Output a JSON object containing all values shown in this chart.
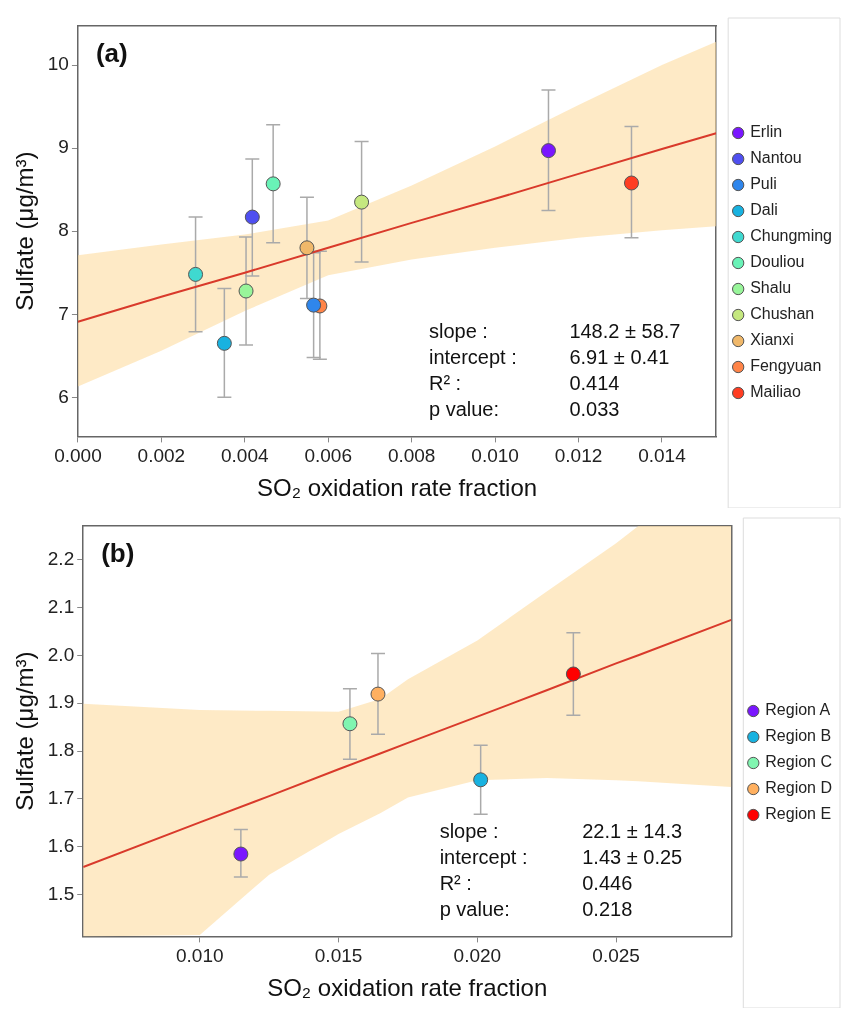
{
  "chart_data": [
    {
      "type": "scatter",
      "title": "(a)",
      "xlabel": "SO₂ oxidation rate fraction",
      "ylabel": "Sulfate (μg/m³)",
      "xlim": [
        0,
        0.0153
      ],
      "xticks": [
        {
          "value": 0,
          "label": "0.000"
        },
        0.002,
        0.004,
        0.006,
        0.008,
        {
          "value": 0.01,
          "label": "0.010"
        },
        0.012,
        0.014
      ],
      "ylim": [
        5.53,
        10.47
      ],
      "yticks": [
        6,
        7,
        8,
        9,
        10
      ],
      "grid": false,
      "legend": "right",
      "marker": "circle",
      "annotations": [
        "slope :",
        "148.2 ± 58.7",
        "intercept :",
        "6.91 ± 0.41",
        "R² :",
        "0.414",
        "p value:",
        "0.033"
      ],
      "series": [
        {
          "name": "Erlin",
          "color": "#7a16ff",
          "x": [
            0.01128
          ],
          "values": [
            8.97
          ],
          "errors": [
            [
              8.25,
              9.7
            ]
          ]
        },
        {
          "name": "Nantou",
          "color": "#4f4ff0",
          "x": [
            0.00418
          ],
          "values": [
            8.17
          ],
          "errors": [
            [
              7.46,
              8.87
            ]
          ]
        },
        {
          "name": "Puli",
          "color": "#2f86ec",
          "x": [
            0.00565
          ],
          "values": [
            7.11
          ],
          "errors": [
            [
              6.48,
              7.74
            ]
          ]
        },
        {
          "name": "Dali",
          "color": "#18b2e0",
          "x": [
            0.00351
          ],
          "values": [
            6.65
          ],
          "errors": [
            [
              6.0,
              7.31
            ]
          ]
        },
        {
          "name": "Chungming",
          "color": "#3fd9d0",
          "x": [
            0.00282
          ],
          "values": [
            7.48
          ],
          "errors": [
            [
              6.79,
              8.17
            ]
          ]
        },
        {
          "name": "Douliou",
          "color": "#69f2b7",
          "x": [
            0.00468
          ],
          "values": [
            8.57
          ],
          "errors": [
            [
              7.86,
              9.28
            ]
          ]
        },
        {
          "name": "Shalu",
          "color": "#98f59a",
          "x": [
            0.00403
          ],
          "values": [
            7.28
          ],
          "errors": [
            [
              6.63,
              7.93
            ]
          ]
        },
        {
          "name": "Chushan",
          "color": "#c5e87f",
          "x": [
            0.0068
          ],
          "values": [
            8.35
          ],
          "errors": [
            [
              7.63,
              9.08
            ]
          ]
        },
        {
          "name": "Xianxi",
          "color": "#f0b86a",
          "x": [
            0.00549
          ],
          "values": [
            7.8
          ],
          "errors": [
            [
              7.19,
              8.41
            ]
          ]
        },
        {
          "name": "Fengyuan",
          "color": "#ff8448",
          "x": [
            0.0058
          ],
          "values": [
            7.1
          ],
          "errors": [
            [
              6.46,
              7.76
            ]
          ]
        },
        {
          "name": "Mailiao",
          "color": "#ff3d22",
          "x": [
            0.01327
          ],
          "values": [
            8.58
          ],
          "errors": [
            [
              7.92,
              9.26
            ]
          ]
        },
        {
          "type": "line",
          "marker": "none",
          "color": "#d93a2b",
          "x": [
            0,
            0.002,
            0.004,
            0.006,
            0.008,
            0.01,
            0.012,
            0.014,
            0.0153
          ],
          "values": [
            6.91,
            7.21,
            7.5,
            7.8,
            8.1,
            8.39,
            8.69,
            8.99,
            9.18
          ],
          "lower": [
            6.13,
            6.56,
            7.04,
            7.47,
            7.66,
            7.8,
            7.92,
            8.01,
            8.06
          ],
          "upper": [
            7.71,
            7.84,
            7.96,
            8.13,
            8.55,
            9.02,
            9.52,
            10.0,
            10.28
          ]
        }
      ]
    },
    {
      "type": "scatter",
      "title": "(b)",
      "xlabel": "SO₂ oxidation rate fraction",
      "ylabel": "Sulfate (μg/m³)",
      "xlim": [
        0.0058,
        0.02915
      ],
      "xticks": [
        {
          "value": 0.01,
          "label": "0.010"
        },
        0.015,
        {
          "value": 0.02,
          "label": "0.020"
        },
        0.025
      ],
      "ylim": [
        1.413,
        2.27
      ],
      "yticks": [
        1.5,
        1.6,
        1.7,
        1.8,
        1.9,
        {
          "value": 2.0,
          "label": "2.0"
        },
        2.1,
        2.2
      ],
      "grid": false,
      "legend": "right",
      "marker": "circle",
      "annotations": [
        "slope :",
        "22.1 ± 14.3",
        "intercept :",
        "1.43 ± 0.25",
        "R² :",
        "0.446",
        "p value:",
        "0.218"
      ],
      "series": [
        {
          "name": "Region A",
          "color": "#7a16ff",
          "x": [
            0.01148
          ],
          "values": [
            1.585
          ],
          "errors": [
            [
              1.537,
              1.636
            ]
          ]
        },
        {
          "name": "Region B",
          "color": "#18b2e0",
          "x": [
            0.02012
          ],
          "values": [
            1.74
          ],
          "errors": [
            [
              1.668,
              1.812
            ]
          ]
        },
        {
          "name": "Region C",
          "color": "#80f5b0",
          "x": [
            0.01541
          ],
          "values": [
            1.857
          ],
          "errors": [
            [
              1.783,
              1.93
            ]
          ]
        },
        {
          "name": "Region D",
          "color": "#ffb060",
          "x": [
            0.01642
          ],
          "values": [
            1.919
          ],
          "errors": [
            [
              1.835,
              2.004
            ]
          ]
        },
        {
          "name": "Region E",
          "color": "#ff0000",
          "x": [
            0.02346
          ],
          "values": [
            1.961
          ],
          "errors": [
            [
              1.875,
              2.047
            ]
          ]
        },
        {
          "type": "line",
          "marker": "none",
          "color": "#d93a2b",
          "x": [
            0.0058,
            0.01,
            0.0125,
            0.015,
            0.0165,
            0.0175,
            0.02,
            0.0225,
            0.025,
            0.0258,
            0.02915
          ],
          "values": [
            1.558,
            1.651,
            1.706,
            1.762,
            1.795,
            1.817,
            1.872,
            1.927,
            1.983,
            2.0,
            2.074
          ],
          "lower": [
            1.413,
            1.416,
            1.542,
            1.627,
            1.67,
            1.703,
            1.739,
            1.744,
            1.739,
            1.737,
            1.725
          ],
          "upper": [
            1.899,
            1.886,
            1.884,
            1.882,
            1.909,
            1.95,
            2.031,
            2.133,
            2.234,
            2.27,
            2.27
          ]
        }
      ]
    }
  ]
}
